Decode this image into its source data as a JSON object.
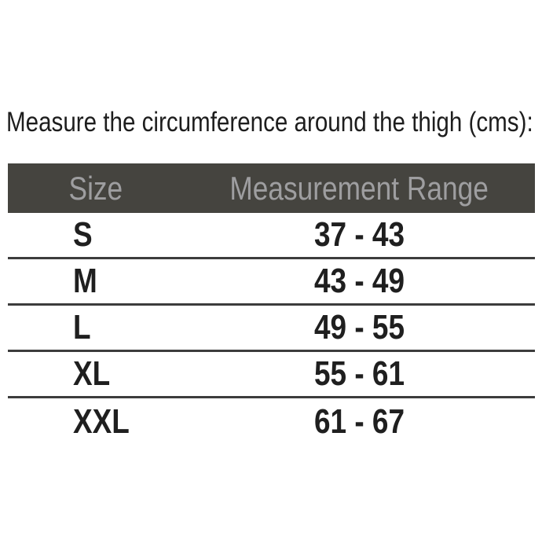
{
  "title": "Measure the circumference around the thigh (cms):",
  "table": {
    "columns": {
      "size": "Size",
      "range": "Measurement Range"
    },
    "rows": [
      {
        "size": "S",
        "range": "37 - 43"
      },
      {
        "size": "M",
        "range": "43 - 49"
      },
      {
        "size": "L",
        "range": "49 - 55"
      },
      {
        "size": "XL",
        "range": "55 - 61"
      },
      {
        "size": "XXL",
        "range": "61 - 67"
      }
    ]
  },
  "colors": {
    "header_bg": "#45443f",
    "header_text": "#9e9ea0",
    "row_text": "#1f1f1f",
    "divider": "#3c3c3c"
  },
  "chart_data": {
    "type": "table",
    "title": "Measure the circumference around the thigh (cms):",
    "columns": [
      "Size",
      "Measurement Range"
    ],
    "rows": [
      [
        "S",
        "37 - 43"
      ],
      [
        "M",
        "43 - 49"
      ],
      [
        "L",
        "49 - 55"
      ],
      [
        "XL",
        "55 - 61"
      ],
      [
        "XXL",
        "61 - 67"
      ]
    ],
    "units": "cms",
    "ranges_numeric": [
      {
        "size": "S",
        "min": 37,
        "max": 43
      },
      {
        "size": "M",
        "min": 43,
        "max": 49
      },
      {
        "size": "L",
        "min": 49,
        "max": 55
      },
      {
        "size": "XL",
        "min": 55,
        "max": 61
      },
      {
        "size": "XXL",
        "min": 61,
        "max": 67
      }
    ]
  }
}
